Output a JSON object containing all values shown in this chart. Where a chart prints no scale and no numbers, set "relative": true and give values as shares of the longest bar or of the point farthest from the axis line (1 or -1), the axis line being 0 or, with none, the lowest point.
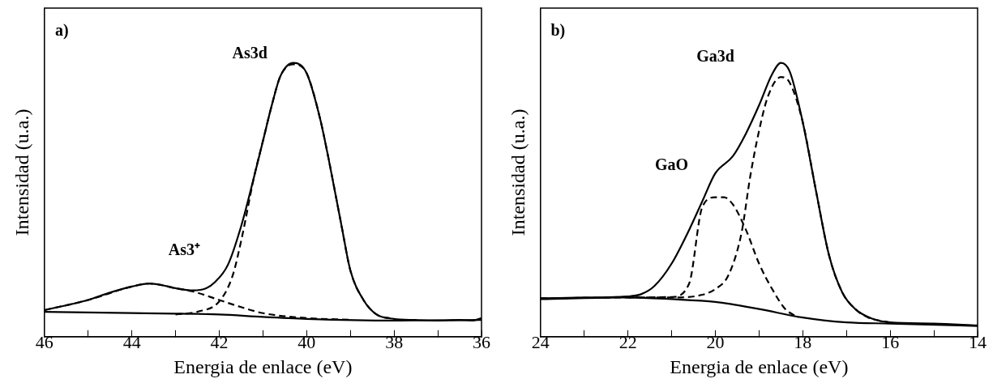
{
  "chart_data": [
    {
      "type": "line",
      "relative": true,
      "xlabel": "Energia de enlace (eV)",
      "ylabel": "Intensidad (u.a.)",
      "xlim": [
        46,
        36
      ],
      "xticks": [
        46,
        {
          "value": 45,
          "label": null
        },
        44,
        {
          "value": 43,
          "label": null
        },
        42,
        {
          "value": 41,
          "label": null
        },
        40,
        {
          "value": 39,
          "label": null
        },
        38,
        {
          "value": 37,
          "label": null
        },
        36
      ],
      "annotations": [
        "a)",
        "As3d",
        "As3⁺"
      ],
      "legend": false,
      "series": [
        {
          "color": "#000000",
          "line_style": "solid",
          "x": [
            46,
            45,
            44.5,
            44,
            43.6,
            43.3,
            43,
            42.6,
            42.3,
            42.1,
            41.8,
            41.5,
            41.2,
            41,
            40.8,
            40.6,
            40.3,
            40,
            39.7,
            39.5,
            39.2,
            39,
            38.7,
            38.4,
            38,
            37.5,
            37,
            36.5,
            36.2,
            36
          ],
          "values": [
            0.097,
            0.134,
            0.161,
            0.183,
            0.194,
            0.188,
            0.177,
            0.169,
            0.177,
            0.199,
            0.263,
            0.403,
            0.586,
            0.715,
            0.844,
            0.952,
            1,
            0.962,
            0.801,
            0.651,
            0.403,
            0.242,
            0.134,
            0.081,
            0.065,
            0.061,
            0.059,
            0.061,
            0.059,
            0.068
          ]
        },
        {
          "color": "#000000",
          "line_style": "solid",
          "x": [
            46,
            44,
            42,
            41,
            40,
            38,
            36
          ],
          "values": [
            0.091,
            0.086,
            0.081,
            0.072,
            0.065,
            0.059,
            0.061
          ]
        },
        {
          "color": "#000000",
          "line_style": "dashed",
          "x": [
            46,
            45,
            44,
            43.6,
            43,
            42.6,
            42,
            41.5,
            41,
            40,
            39
          ],
          "values": [
            0.097,
            0.134,
            0.183,
            0.194,
            0.177,
            0.165,
            0.134,
            0.108,
            0.086,
            0.068,
            0.062
          ]
        },
        {
          "color": "#000000",
          "line_style": "dashed",
          "x": [
            43,
            42.5,
            42,
            41.7,
            41.5,
            41.2,
            41,
            40.8,
            40.6,
            40.3,
            40,
            39.7,
            39.5,
            39.2,
            39,
            38.7,
            38.4,
            38
          ],
          "values": [
            0.081,
            0.091,
            0.129,
            0.22,
            0.349,
            0.586,
            0.715,
            0.844,
            0.952,
            0.995,
            0.962,
            0.801,
            0.651,
            0.403,
            0.242,
            0.134,
            0.081,
            0.065
          ]
        }
      ]
    },
    {
      "type": "line",
      "relative": true,
      "xlabel": "Energia de enlace (eV)",
      "ylabel": "Intensidad (u.a.)",
      "xlim": [
        24,
        14
      ],
      "xticks": [
        24,
        {
          "value": 23,
          "label": null
        },
        22,
        {
          "value": 21,
          "label": null
        },
        20,
        {
          "value": 19,
          "label": null
        },
        18,
        {
          "value": 17,
          "label": null
        },
        16,
        {
          "value": 15,
          "label": null
        },
        14
      ],
      "annotations": [
        "b)",
        "Ga3d",
        "GaO"
      ],
      "legend": false,
      "series": [
        {
          "color": "#000000",
          "line_style": "solid",
          "x": [
            24,
            23,
            22,
            21.7,
            21.4,
            21,
            20.6,
            20.3,
            20,
            19.6,
            19.3,
            19,
            18.7,
            18.5,
            18.3,
            18,
            17.7,
            17.4,
            17.1,
            16.8,
            16.4,
            16,
            15,
            14
          ],
          "values": [
            0.14,
            0.143,
            0.147,
            0.155,
            0.184,
            0.267,
            0.39,
            0.494,
            0.597,
            0.659,
            0.742,
            0.845,
            0.959,
            1,
            0.969,
            0.783,
            0.535,
            0.298,
            0.163,
            0.101,
            0.065,
            0.052,
            0.048,
            0.041
          ]
        },
        {
          "color": "#000000",
          "line_style": "solid",
          "x": [
            24,
            22,
            21,
            20,
            19,
            18,
            17,
            16,
            14
          ],
          "values": [
            0.137,
            0.143,
            0.137,
            0.127,
            0.101,
            0.07,
            0.052,
            0.048,
            0.039
          ]
        },
        {
          "color": "#000000",
          "line_style": "dashed",
          "x": [
            22,
            21,
            20.6,
            20.3,
            20,
            19.8,
            19.6,
            19.3,
            19,
            18.7,
            18.4,
            18.1
          ],
          "values": [
            0.143,
            0.145,
            0.194,
            0.473,
            0.509,
            0.509,
            0.483,
            0.39,
            0.267,
            0.174,
            0.101,
            0.07
          ]
        },
        {
          "color": "#000000",
          "line_style": "dashed",
          "x": [
            24,
            22,
            21,
            20.3,
            20,
            19.7,
            19.4,
            19.2,
            19,
            18.8,
            18.5,
            18.3,
            18,
            17.7,
            17.4,
            17.1,
            16.8,
            16.5,
            16
          ],
          "values": [
            0.14,
            0.143,
            0.143,
            0.153,
            0.174,
            0.225,
            0.38,
            0.587,
            0.752,
            0.876,
            0.948,
            0.928,
            0.783,
            0.535,
            0.298,
            0.163,
            0.101,
            0.07,
            0.052
          ]
        }
      ]
    }
  ]
}
